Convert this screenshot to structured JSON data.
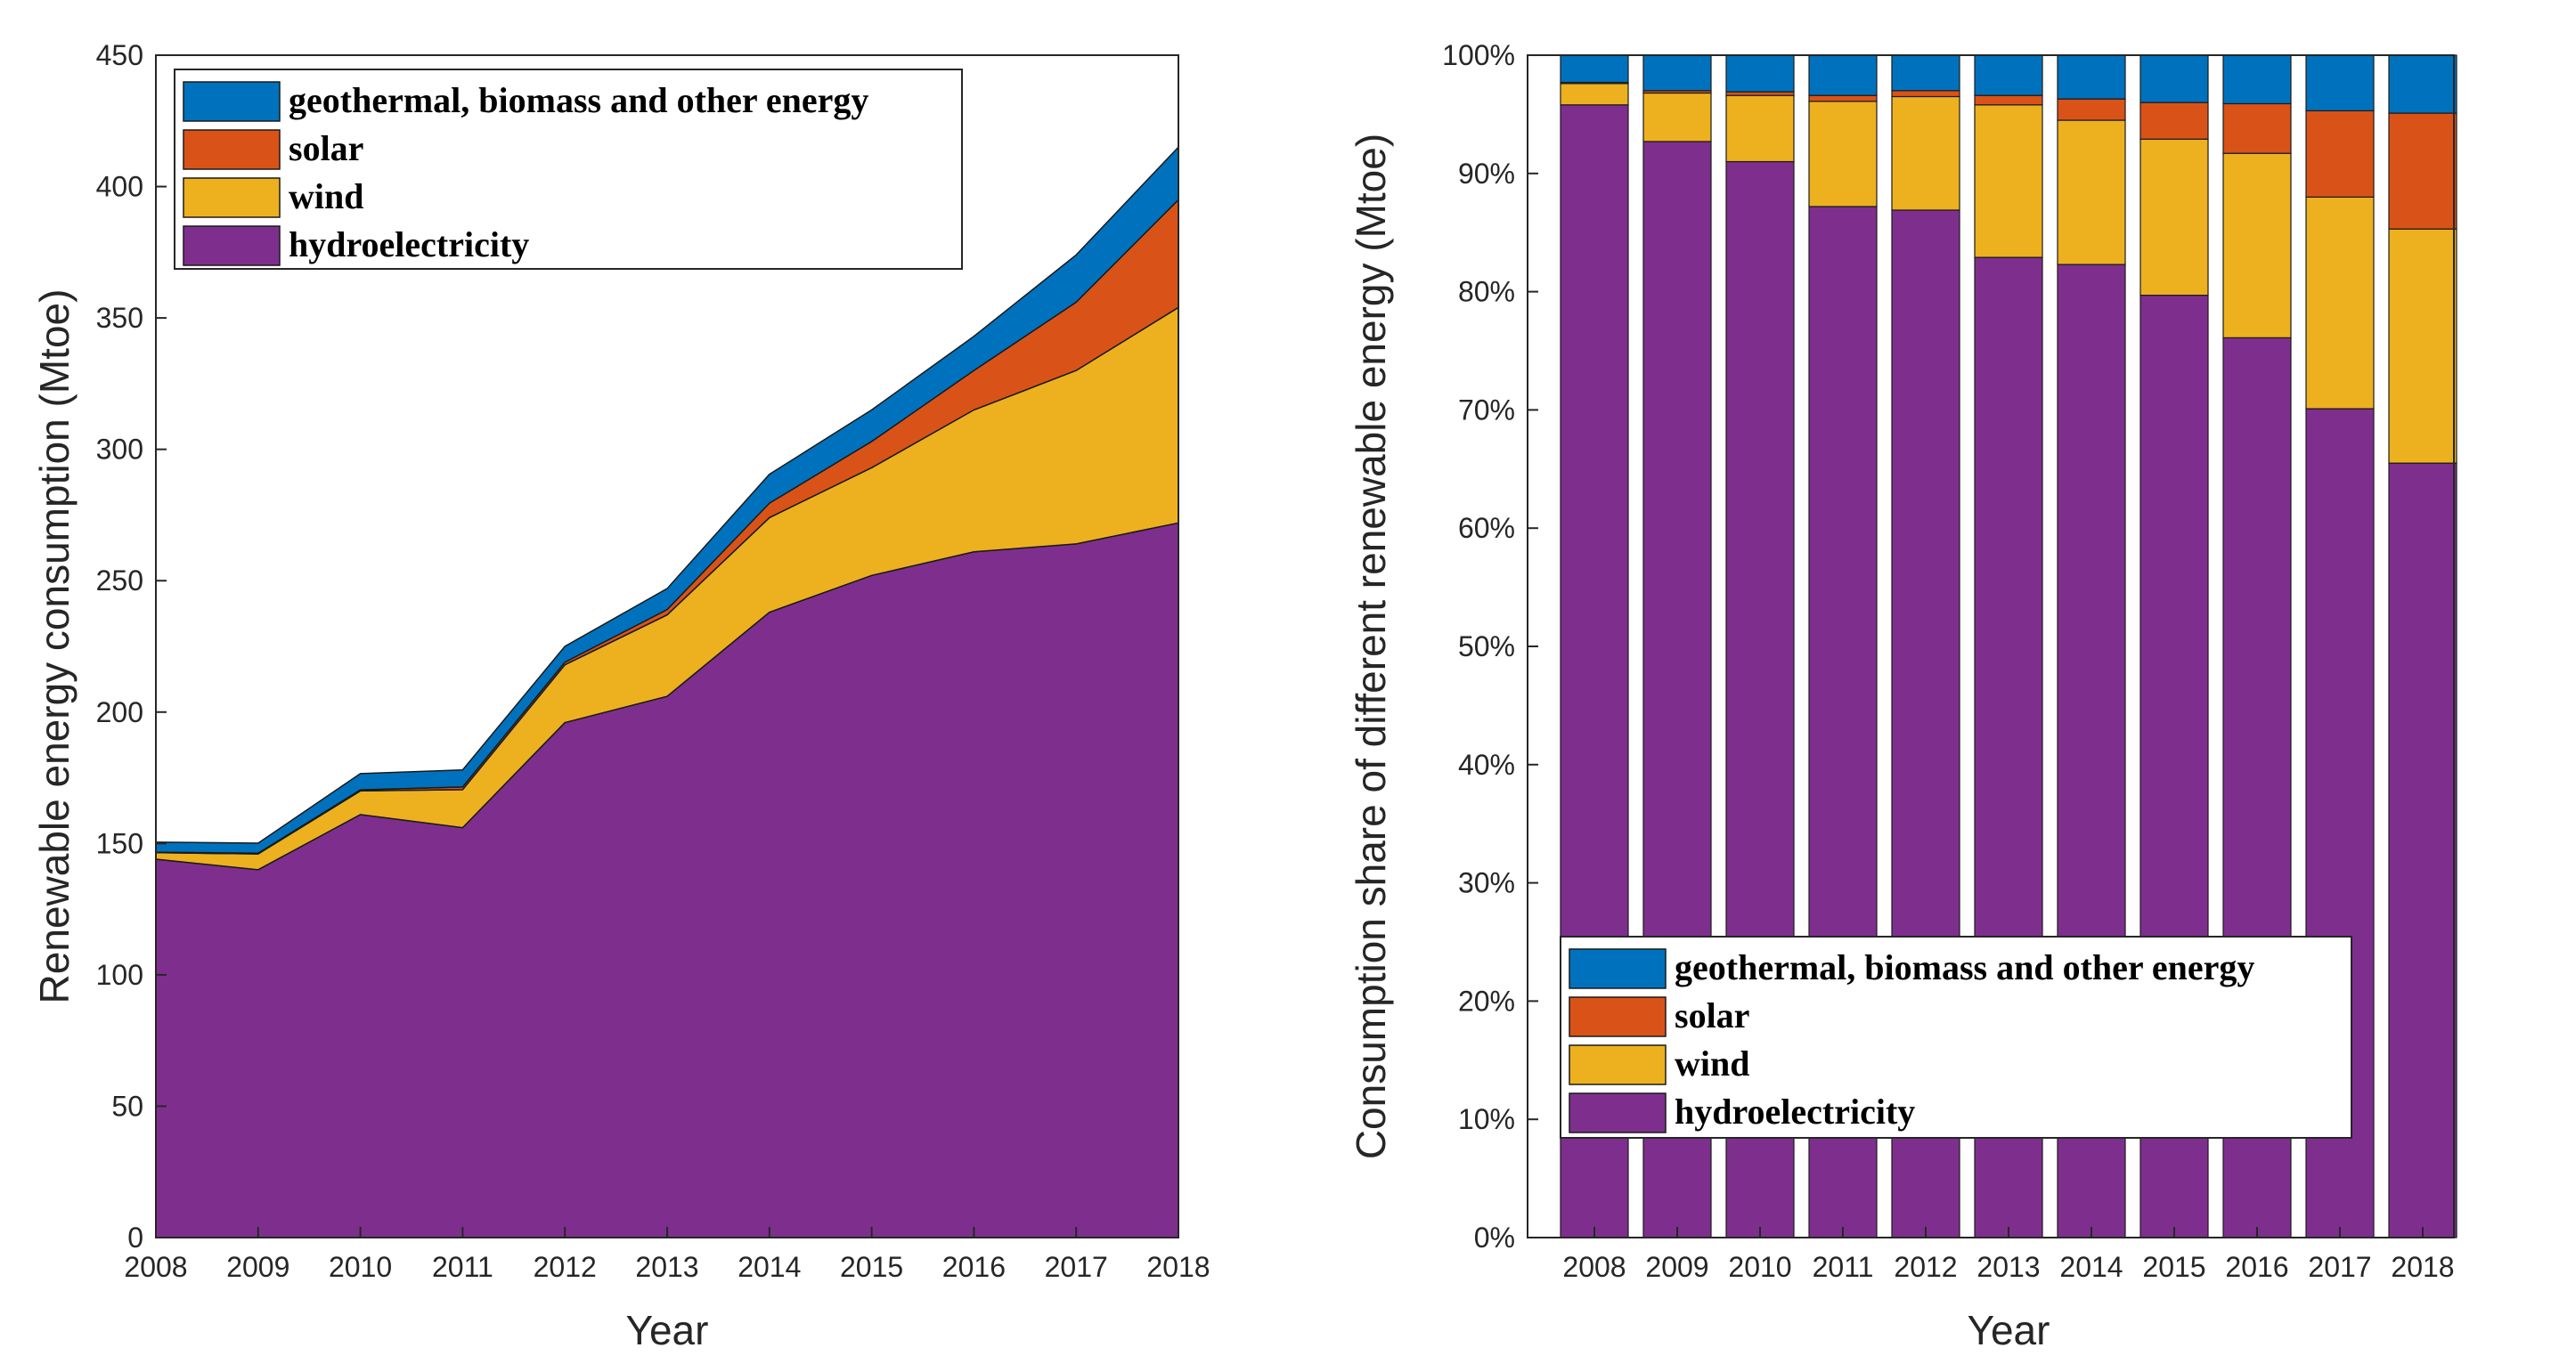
{
  "chart_data": [
    {
      "type": "area",
      "stacked": true,
      "x": [
        2008,
        2009,
        2010,
        2011,
        2012,
        2013,
        2014,
        2015,
        2016,
        2017,
        2018
      ],
      "xlabel": "Year",
      "ylabel": "Renewable energy consumption (Mtoe)",
      "xlim": [
        2008,
        2018
      ],
      "ylim": [
        0,
        450
      ],
      "yticks": [
        0,
        50,
        100,
        150,
        200,
        250,
        300,
        350,
        400,
        450
      ],
      "grid": false,
      "legend_position": "top-left",
      "series": [
        {
          "name": "hydroelectricity",
          "color": "#7E2F8E",
          "values": [
            144,
            140,
            161,
            156,
            196,
            206,
            238,
            252,
            261,
            264,
            272
          ]
        },
        {
          "name": "wind",
          "color": "#EDB120",
          "values": [
            2.5,
            6,
            9,
            14.5,
            22,
            31,
            36,
            41,
            54,
            66,
            82
          ]
        },
        {
          "name": "solar",
          "color": "#D95319",
          "values": [
            0.2,
            0.3,
            0.4,
            1,
            1,
            2,
            5.5,
            10,
            15,
            26,
            41
          ]
        },
        {
          "name": "geothermal, biomass and other energy",
          "color": "#0072BD",
          "values": [
            3.8,
            3.8,
            6.2,
            6.5,
            6,
            8,
            11,
            12,
            13,
            18,
            20
          ]
        }
      ],
      "legend_order": [
        "geothermal, biomass and other energy",
        "solar",
        "wind",
        "hydroelectricity"
      ]
    },
    {
      "type": "bar",
      "stacked": true,
      "categories": [
        "2008",
        "2009",
        "2010",
        "2011",
        "2012",
        "2013",
        "2014",
        "2015",
        "2016",
        "2017",
        "2018"
      ],
      "xlabel": "Year",
      "ylabel": "Consumption share of different renewable energy (Mtoe)",
      "ylim": [
        0,
        100
      ],
      "ytick_labels": [
        "0%",
        "10%",
        "20%",
        "30%",
        "40%",
        "50%",
        "60%",
        "70%",
        "80%",
        "90%",
        "100%"
      ],
      "grid": false,
      "legend_position": "bottom-center",
      "series": [
        {
          "name": "hydroelectricity",
          "color": "#7E2F8E",
          "values": [
            95.8,
            92.7,
            91.0,
            87.2,
            86.9,
            82.9,
            82.3,
            79.7,
            76.1,
            70.1,
            65.5
          ]
        },
        {
          "name": "wind",
          "color": "#EDB120",
          "values": [
            1.8,
            4.1,
            5.6,
            8.9,
            9.6,
            12.9,
            12.2,
            13.2,
            15.6,
            17.9,
            19.8
          ]
        },
        {
          "name": "solar",
          "color": "#D95319",
          "values": [
            0.1,
            0.2,
            0.3,
            0.5,
            0.5,
            0.8,
            1.8,
            3.1,
            4.2,
            7.3,
            9.8
          ]
        },
        {
          "name": "geothermal, biomass and other energy",
          "color": "#0072BD",
          "values": [
            2.3,
            3.0,
            3.1,
            3.4,
            3.0,
            3.4,
            3.7,
            4.0,
            4.1,
            4.7,
            4.9
          ]
        }
      ],
      "legend_order": [
        "geothermal, biomass and other energy",
        "solar",
        "wind",
        "hydroelectricity"
      ]
    }
  ]
}
